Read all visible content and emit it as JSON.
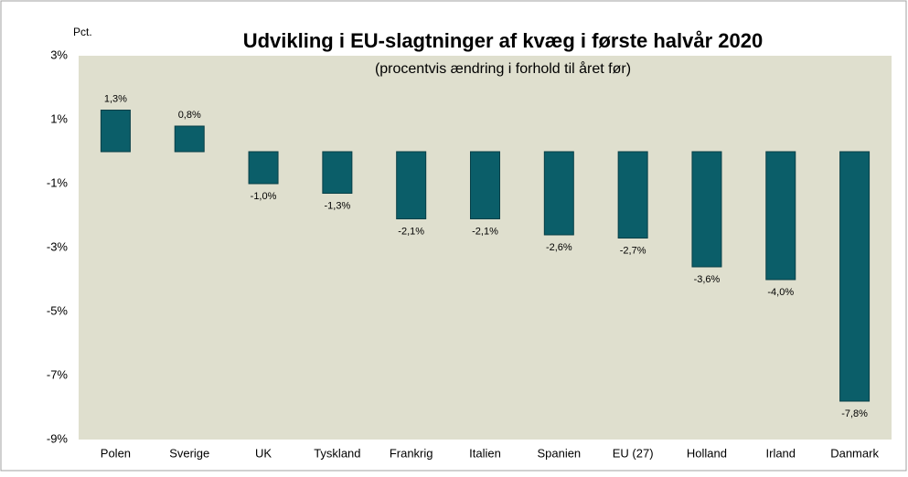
{
  "chart_data": {
    "type": "bar",
    "title": "Udvikling i EU-slagtninger af kvæg i første halvår 2020",
    "subtitle": "(procentvis ændring i forhold til året før)",
    "y_axis_label": "Pct.",
    "categories": [
      "Polen",
      "Sverige",
      "UK",
      "Tyskland",
      "Frankrig",
      "Italien",
      "Spanien",
      "EU (27)",
      "Holland",
      "Irland",
      "Danmark"
    ],
    "values": [
      1.3,
      0.8,
      -1.0,
      -1.3,
      -2.1,
      -2.1,
      -2.6,
      -2.7,
      -3.6,
      -4.0,
      -7.8
    ],
    "value_labels": [
      "1,3%",
      "0,8%",
      "-1,0%",
      "-1,3%",
      "-2,1%",
      "-2,1%",
      "-2,6%",
      "-2,7%",
      "-3,6%",
      "-4,0%",
      "-7,8%"
    ],
    "color": "#0b5e69",
    "ylim": [
      -9,
      3
    ],
    "yticks": [
      {
        "value": 3,
        "label": "3%"
      },
      {
        "value": 1,
        "label": "1%"
      },
      {
        "value": -1,
        "label": "-1%"
      },
      {
        "value": -3,
        "label": "-3%"
      },
      {
        "value": -5,
        "label": "-5%"
      },
      {
        "value": -7,
        "label": "-7%"
      },
      {
        "value": -9,
        "label": "-9%"
      }
    ],
    "grid": false
  }
}
